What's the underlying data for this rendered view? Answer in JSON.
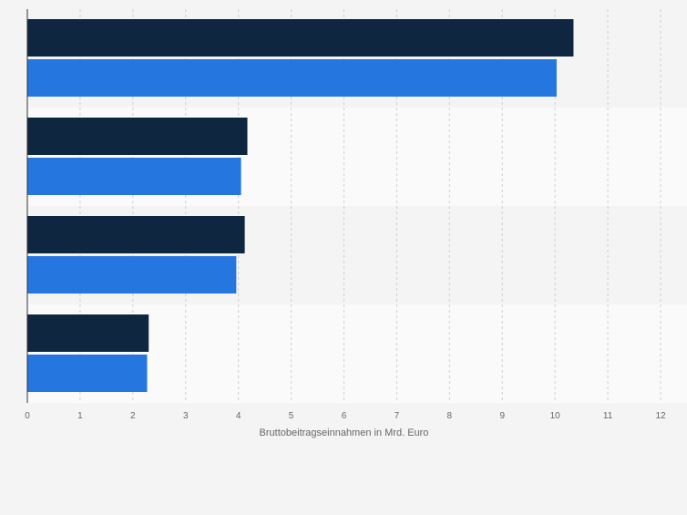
{
  "chart_data": {
    "type": "bar",
    "orientation": "horizontal",
    "categories": [
      "",
      "",
      "",
      ""
    ],
    "series": [
      {
        "values": [
          10.35,
          4.17,
          4.12,
          2.3
        ],
        "color": "#0f2640"
      },
      {
        "values": [
          10.03,
          4.05,
          3.96,
          2.27
        ],
        "color": "#2576df"
      }
    ],
    "xlabel": "Bruttobeitragseinnahmen in Mrd. Euro",
    "xlim": [
      0,
      12
    ],
    "xticks": [
      "0",
      "1",
      "2",
      "3",
      "4",
      "5",
      "6",
      "7",
      "8",
      "9",
      "10",
      "11",
      "12"
    ],
    "grid": true,
    "band_colors": [
      "#f4f4f4",
      "#fafafa"
    ]
  }
}
